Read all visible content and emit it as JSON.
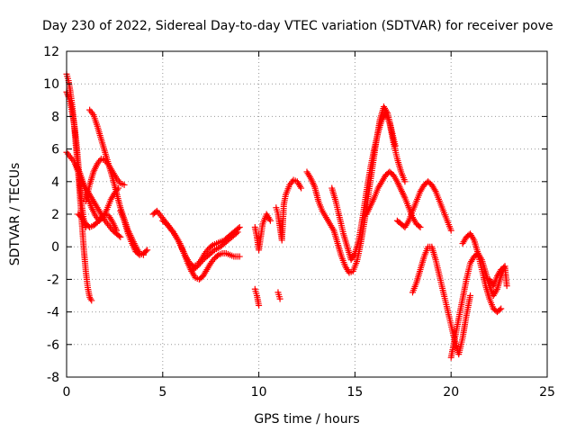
{
  "chart_data": {
    "type": "scatter",
    "title": "Day 230 of 2022, Sidereal Day-to-day VTEC variation (SDTVAR) for receiver pove",
    "xlabel": "GPS time / hours",
    "ylabel": "SDTVAR / TECUs",
    "xlim": [
      0,
      25
    ],
    "ylim": [
      -8,
      12
    ],
    "xticks": [
      0,
      5,
      10,
      15,
      20,
      25
    ],
    "yticks": [
      -8,
      -6,
      -4,
      -2,
      0,
      2,
      4,
      6,
      8,
      10,
      12
    ],
    "grid": true,
    "marker": "+",
    "color": "#ff0000",
    "series": [
      {
        "name": "s1",
        "x": [
          0.0,
          0.1,
          0.2,
          0.3,
          0.4,
          0.5,
          0.6,
          0.7,
          0.8,
          0.9,
          1.0,
          1.1,
          1.2,
          1.3
        ],
        "y": [
          10.6,
          10.2,
          9.5,
          8.6,
          7.4,
          6.0,
          4.6,
          3.0,
          1.4,
          -0.2,
          -1.5,
          -2.5,
          -3.1,
          -3.3
        ]
      },
      {
        "name": "s2",
        "x": [
          0.0,
          0.1,
          0.2,
          0.3,
          0.4,
          0.5,
          0.6,
          0.7,
          0.8,
          0.9,
          1.0
        ],
        "y": [
          9.5,
          9.2,
          8.8,
          8.2,
          7.5,
          6.5,
          5.2,
          3.8,
          2.5,
          1.6,
          1.2
        ]
      },
      {
        "name": "s3",
        "x": [
          0.0,
          0.2,
          0.4,
          0.6,
          0.8,
          1.0,
          1.2,
          1.4,
          1.6,
          1.8,
          2.0,
          2.2,
          2.4,
          2.6,
          2.8
        ],
        "y": [
          5.8,
          5.5,
          5.2,
          4.6,
          4.0,
          3.6,
          3.2,
          2.8,
          2.4,
          2.0,
          1.6,
          1.3,
          1.0,
          0.8,
          0.6
        ]
      },
      {
        "name": "s4",
        "x": [
          0.5,
          0.7,
          0.9,
          1.1,
          1.3,
          1.5,
          1.7,
          1.9,
          2.1,
          2.3,
          2.5,
          2.7
        ],
        "y": [
          5.0,
          4.5,
          3.8,
          3.0,
          2.4,
          1.9,
          1.6,
          1.8,
          2.3,
          2.9,
          3.3,
          3.6
        ]
      },
      {
        "name": "s5",
        "x": [
          1.2,
          1.4,
          1.6,
          1.8,
          2.0,
          2.2,
          2.4,
          2.6,
          2.8,
          3.0,
          3.2,
          3.4,
          3.6,
          3.8,
          4.0
        ],
        "y": [
          8.4,
          8.1,
          7.4,
          6.6,
          5.8,
          5.0,
          4.2,
          3.3,
          2.4,
          1.7,
          1.0,
          0.5,
          0.0,
          -0.4,
          -0.5
        ]
      },
      {
        "name": "s6",
        "x": [
          1.0,
          1.2,
          1.4,
          1.6,
          1.8,
          2.0,
          2.2,
          2.4,
          2.6,
          2.8,
          3.0
        ],
        "y": [
          2.8,
          3.8,
          4.6,
          5.1,
          5.4,
          5.3,
          5.0,
          4.6,
          4.2,
          3.9,
          3.8
        ]
      },
      {
        "name": "s7",
        "x": [
          0.6,
          0.8,
          1.0,
          1.2,
          1.4,
          1.6,
          1.8,
          2.0,
          2.2,
          2.4,
          2.6
        ],
        "y": [
          2.0,
          1.8,
          1.4,
          1.2,
          1.3,
          1.5,
          1.8,
          2.0,
          1.9,
          1.5,
          1.0
        ]
      },
      {
        "name": "s8",
        "x": [
          2.8,
          3.0,
          3.2,
          3.4,
          3.6,
          3.8,
          4.0,
          4.2
        ],
        "y": [
          2.2,
          1.6,
          0.8,
          0.2,
          -0.3,
          -0.5,
          -0.4,
          -0.2
        ]
      },
      {
        "name": "s9",
        "x": [
          4.5,
          4.7,
          4.9,
          5.1,
          5.3,
          5.5,
          5.7,
          5.9,
          6.1,
          6.3,
          6.5,
          6.7,
          6.9,
          7.1,
          7.3,
          7.5,
          7.7,
          7.9,
          8.1,
          8.3,
          8.5,
          8.7,
          9.0
        ],
        "y": [
          2.0,
          2.2,
          1.9,
          1.6,
          1.3,
          1.0,
          0.6,
          0.2,
          -0.4,
          -1.0,
          -1.5,
          -1.9,
          -2.0,
          -1.8,
          -1.4,
          -1.0,
          -0.7,
          -0.5,
          -0.4,
          -0.4,
          -0.5,
          -0.6,
          -0.6
        ]
      },
      {
        "name": "s10",
        "x": [
          5.0,
          5.2,
          5.4,
          5.6,
          5.8,
          6.0,
          6.2,
          6.4,
          6.6,
          6.8,
          7.0,
          7.2,
          7.4,
          7.6,
          7.8,
          8.0,
          8.2,
          8.4,
          8.6,
          8.8,
          9.0
        ],
        "y": [
          1.6,
          1.4,
          1.1,
          0.8,
          0.4,
          -0.1,
          -0.6,
          -1.0,
          -1.2,
          -1.1,
          -0.8,
          -0.4,
          -0.1,
          0.1,
          0.2,
          0.3,
          0.4,
          0.6,
          0.8,
          1.0,
          1.2
        ]
      },
      {
        "name": "s11",
        "x": [
          6.5,
          6.8,
          7.1,
          7.4,
          7.7,
          8.0,
          8.3,
          8.6,
          8.9
        ],
        "y": [
          -1.5,
          -1.2,
          -0.8,
          -0.5,
          -0.2,
          0.0,
          0.3,
          0.6,
          0.9
        ]
      },
      {
        "name": "s12",
        "x": [
          9.8,
          9.9,
          10.0,
          10.2,
          10.4,
          10.6
        ],
        "y": [
          1.2,
          0.6,
          -0.2,
          1.4,
          2.0,
          1.6
        ]
      },
      {
        "name": "s13",
        "x": [
          9.8,
          9.9,
          10.0
        ],
        "y": [
          -2.6,
          -3.0,
          -3.6
        ]
      },
      {
        "name": "s14",
        "x": [
          10.9,
          11.0,
          11.1,
          11.2,
          11.3,
          11.4,
          11.6,
          11.8,
          12.0,
          12.2
        ],
        "y": [
          2.4,
          2.0,
          1.2,
          0.4,
          2.6,
          3.2,
          3.8,
          4.1,
          4.0,
          3.6
        ]
      },
      {
        "name": "s15",
        "x": [
          11.0,
          11.1
        ],
        "y": [
          -2.8,
          -3.2
        ]
      },
      {
        "name": "s16",
        "x": [
          12.5,
          12.7,
          12.9,
          13.1,
          13.3,
          13.5,
          13.7,
          13.9,
          14.1,
          14.3,
          14.5,
          14.7,
          14.9,
          15.1,
          15.3,
          15.5,
          15.7,
          15.9,
          16.1,
          16.3,
          16.5,
          16.7,
          16.9,
          17.1
        ],
        "y": [
          4.6,
          4.2,
          3.7,
          2.8,
          2.2,
          1.8,
          1.4,
          1.0,
          0.2,
          -0.6,
          -1.2,
          -1.6,
          -1.5,
          -0.9,
          0.2,
          1.6,
          3.2,
          4.8,
          6.4,
          7.8,
          8.6,
          8.2,
          7.2,
          6.2
        ]
      },
      {
        "name": "s17",
        "x": [
          13.8,
          14.0,
          14.2,
          14.4,
          14.6,
          14.8,
          15.0,
          15.2,
          15.4,
          15.6,
          15.8,
          16.0,
          16.2,
          16.4,
          16.6,
          16.8,
          17.0,
          17.2,
          17.4,
          17.6
        ],
        "y": [
          3.6,
          2.8,
          1.8,
          0.8,
          0.0,
          -0.8,
          -0.4,
          0.4,
          1.8,
          3.4,
          4.8,
          6.0,
          7.0,
          7.8,
          8.2,
          7.6,
          6.4,
          5.4,
          4.6,
          4.0
        ]
      },
      {
        "name": "s18",
        "x": [
          15.6,
          15.8,
          16.0,
          16.2,
          16.4,
          16.6,
          16.8,
          17.0,
          17.2,
          17.4,
          17.6,
          17.8,
          18.0,
          18.2,
          18.4
        ],
        "y": [
          2.0,
          2.5,
          3.0,
          3.6,
          4.0,
          4.4,
          4.6,
          4.4,
          4.0,
          3.5,
          3.0,
          2.4,
          1.8,
          1.4,
          1.2
        ]
      },
      {
        "name": "s19",
        "x": [
          17.2,
          17.4,
          17.6,
          17.8,
          18.0,
          18.2,
          18.4,
          18.6,
          18.8,
          19.0,
          19.2,
          19.4,
          19.6,
          19.8,
          20.0
        ],
        "y": [
          1.6,
          1.4,
          1.2,
          1.6,
          2.2,
          2.8,
          3.4,
          3.8,
          4.0,
          3.8,
          3.4,
          2.8,
          2.2,
          1.6,
          1.0
        ]
      },
      {
        "name": "s20",
        "x": [
          18.0,
          18.2,
          18.4,
          18.6,
          18.8,
          19.0,
          19.2,
          19.4,
          19.6,
          19.8,
          20.0,
          20.2,
          20.4,
          20.6,
          20.8,
          21.0
        ],
        "y": [
          -2.8,
          -2.2,
          -1.4,
          -0.6,
          0.0,
          0.0,
          -0.8,
          -1.8,
          -2.8,
          -3.8,
          -4.8,
          -5.8,
          -6.6,
          -5.6,
          -4.2,
          -3.0
        ]
      },
      {
        "name": "s21",
        "x": [
          20.0,
          20.2,
          20.4,
          20.6,
          20.8,
          21.0,
          21.2,
          21.4,
          21.6,
          21.8,
          22.0,
          22.2,
          22.4,
          22.6,
          22.8
        ],
        "y": [
          -6.8,
          -5.6,
          -4.4,
          -3.2,
          -2.0,
          -1.0,
          -0.6,
          -0.4,
          -0.8,
          -1.6,
          -2.4,
          -3.0,
          -2.6,
          -1.8,
          -1.2
        ]
      },
      {
        "name": "s22",
        "x": [
          20.6,
          20.8,
          21.0,
          21.2,
          21.4,
          21.6,
          21.8,
          22.0,
          22.2,
          22.4,
          22.6
        ],
        "y": [
          0.2,
          0.6,
          0.8,
          0.4,
          -0.4,
          -1.4,
          -2.4,
          -3.2,
          -3.8,
          -4.0,
          -3.8
        ]
      },
      {
        "name": "s23",
        "x": [
          22.0,
          22.2,
          22.4,
          22.6,
          22.8,
          22.9
        ],
        "y": [
          -2.0,
          -2.4,
          -1.8,
          -1.4,
          -1.2,
          -2.4
        ]
      }
    ]
  }
}
